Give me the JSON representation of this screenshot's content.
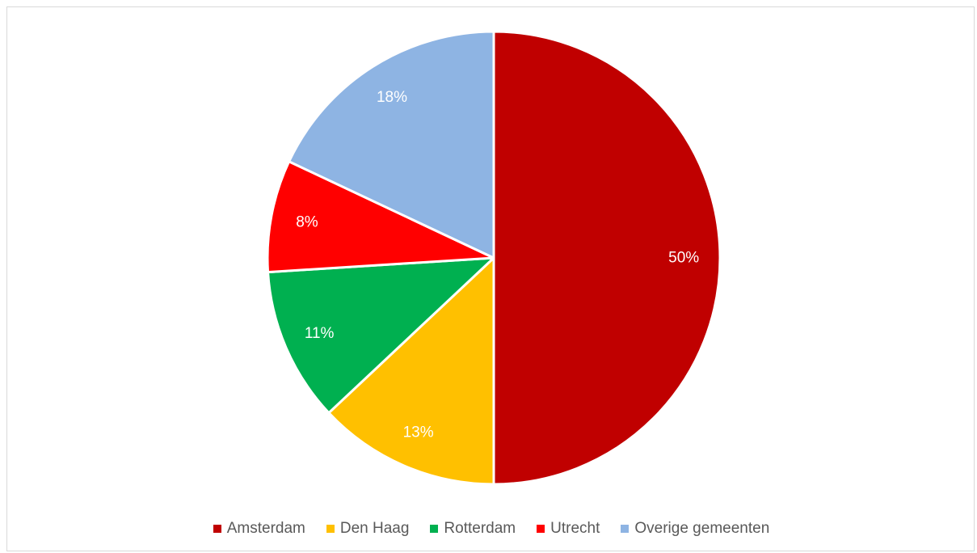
{
  "chart_data": {
    "type": "pie",
    "title": "",
    "start_angle_deg": 0,
    "direction": "clockwise",
    "legend_position": "bottom",
    "slices": [
      {
        "name": "Amsterdam",
        "value": 50,
        "label": "50%",
        "color": "#c00000"
      },
      {
        "name": "Den Haag",
        "value": 13,
        "label": "13%",
        "color": "#ffc000"
      },
      {
        "name": "Rotterdam",
        "value": 11,
        "label": "11%",
        "color": "#00b050"
      },
      {
        "name": "Utrecht",
        "value": 8,
        "label": "8%",
        "color": "#ff0000"
      },
      {
        "name": "Overige gemeenten",
        "value": 18,
        "label": "18%",
        "color": "#8eb4e3"
      }
    ]
  }
}
